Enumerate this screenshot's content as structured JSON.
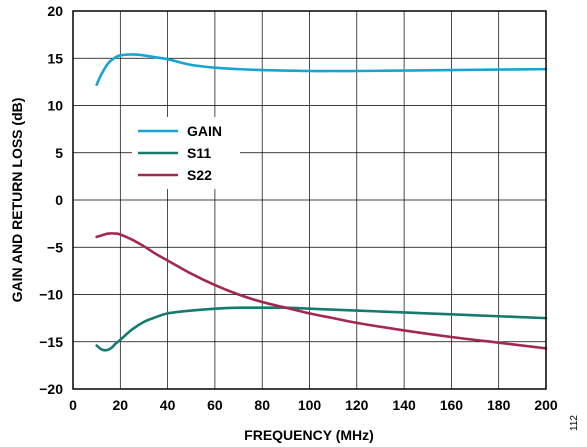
{
  "chart_data": {
    "type": "line",
    "xlabel": "FREQUENCY (MHz)",
    "ylabel": "GAIN AND RETURN LOSS (dB)",
    "xlim": [
      0,
      200
    ],
    "ylim": [
      -20,
      20
    ],
    "x_ticks": [
      0,
      20,
      40,
      60,
      80,
      100,
      120,
      140,
      160,
      180,
      200
    ],
    "y_ticks": [
      -20,
      -15,
      -10,
      -5,
      0,
      5,
      10,
      15,
      20
    ],
    "x_tick_labels": [
      "0",
      "20",
      "40",
      "60",
      "80",
      "100",
      "120",
      "140",
      "160",
      "180",
      "200"
    ],
    "y_tick_labels": [
      "−20",
      "−15",
      "−10",
      "−5",
      "0",
      "5",
      "10",
      "15",
      "20"
    ],
    "grid": true,
    "legend_position": "center-left",
    "figure_id": "112",
    "series": [
      {
        "name": "GAIN",
        "color": "#19a3d4",
        "x": [
          10,
          12,
          15,
          18,
          20,
          25,
          30,
          35,
          40,
          50,
          60,
          70,
          80,
          90,
          100,
          110,
          120,
          140,
          160,
          180,
          200
        ],
        "y": [
          12.2,
          13.3,
          14.5,
          15.1,
          15.3,
          15.4,
          15.3,
          15.1,
          14.9,
          14.3,
          14.0,
          13.85,
          13.75,
          13.7,
          13.65,
          13.65,
          13.65,
          13.7,
          13.75,
          13.8,
          13.85
        ]
      },
      {
        "name": "S11",
        "color": "#177a6e",
        "x": [
          10,
          12,
          14,
          16,
          18,
          20,
          25,
          30,
          35,
          40,
          50,
          60,
          70,
          80,
          90,
          100,
          120,
          140,
          160,
          180,
          200
        ],
        "y": [
          -15.4,
          -15.8,
          -15.9,
          -15.7,
          -15.2,
          -14.8,
          -13.7,
          -12.9,
          -12.4,
          -12.0,
          -11.7,
          -11.5,
          -11.4,
          -11.4,
          -11.4,
          -11.5,
          -11.7,
          -11.9,
          -12.1,
          -12.3,
          -12.5
        ]
      },
      {
        "name": "S22",
        "color": "#a3284f",
        "x": [
          10,
          12,
          15,
          18,
          20,
          25,
          30,
          35,
          40,
          50,
          60,
          70,
          80,
          90,
          100,
          110,
          120,
          140,
          160,
          180,
          200
        ],
        "y": [
          -3.9,
          -3.75,
          -3.55,
          -3.55,
          -3.65,
          -4.2,
          -4.9,
          -5.7,
          -6.4,
          -7.8,
          -9.0,
          -10.0,
          -10.8,
          -11.4,
          -12.0,
          -12.5,
          -13.0,
          -13.8,
          -14.5,
          -15.1,
          -15.7
        ]
      }
    ]
  }
}
